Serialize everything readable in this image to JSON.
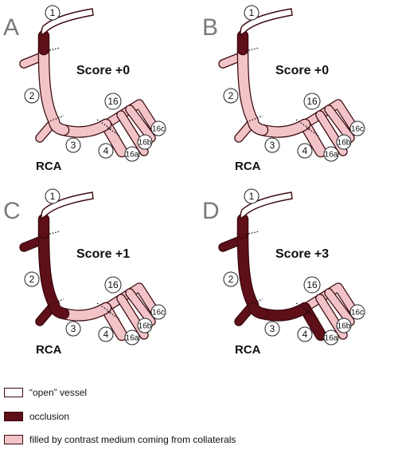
{
  "colors": {
    "open": "#ffffff",
    "occlusion": "#5e0f18",
    "filled": "#f2c4c7",
    "outline": "#3a0a10"
  },
  "panels": [
    {
      "letter": "A",
      "score": "Score +0",
      "vessel_label": "RCA",
      "segment_1": "occlusion",
      "segment_2": "filled",
      "segment_3": "filled",
      "segment_4": "filled",
      "segment_16": "filled"
    },
    {
      "letter": "B",
      "score": "Score +0",
      "vessel_label": "RCA",
      "segment_1": "occlusion",
      "segment_2": "filled",
      "segment_3": "filled",
      "segment_4": "filled",
      "segment_16": "filled"
    },
    {
      "letter": "C",
      "score": "Score +1",
      "vessel_label": "RCA",
      "segment_1": "occlusion",
      "segment_2": "occlusion",
      "segment_3": "filled",
      "segment_4": "filled",
      "segment_16": "filled"
    },
    {
      "letter": "D",
      "score": "Score +3",
      "vessel_label": "RCA",
      "segment_1": "occlusion",
      "segment_2": "occlusion",
      "segment_3": "occlusion",
      "segment_4": "occlusion",
      "segment_16": "filled"
    }
  ],
  "segment_labels": [
    "1",
    "2",
    "3",
    "4",
    "16",
    "16a",
    "16b",
    "16c"
  ],
  "legend": [
    {
      "key": "open",
      "label": "“open” vessel"
    },
    {
      "key": "occlusion",
      "label": "occlusion"
    },
    {
      "key": "filled",
      "label": "filled by contrast medium coming from collaterals"
    }
  ]
}
